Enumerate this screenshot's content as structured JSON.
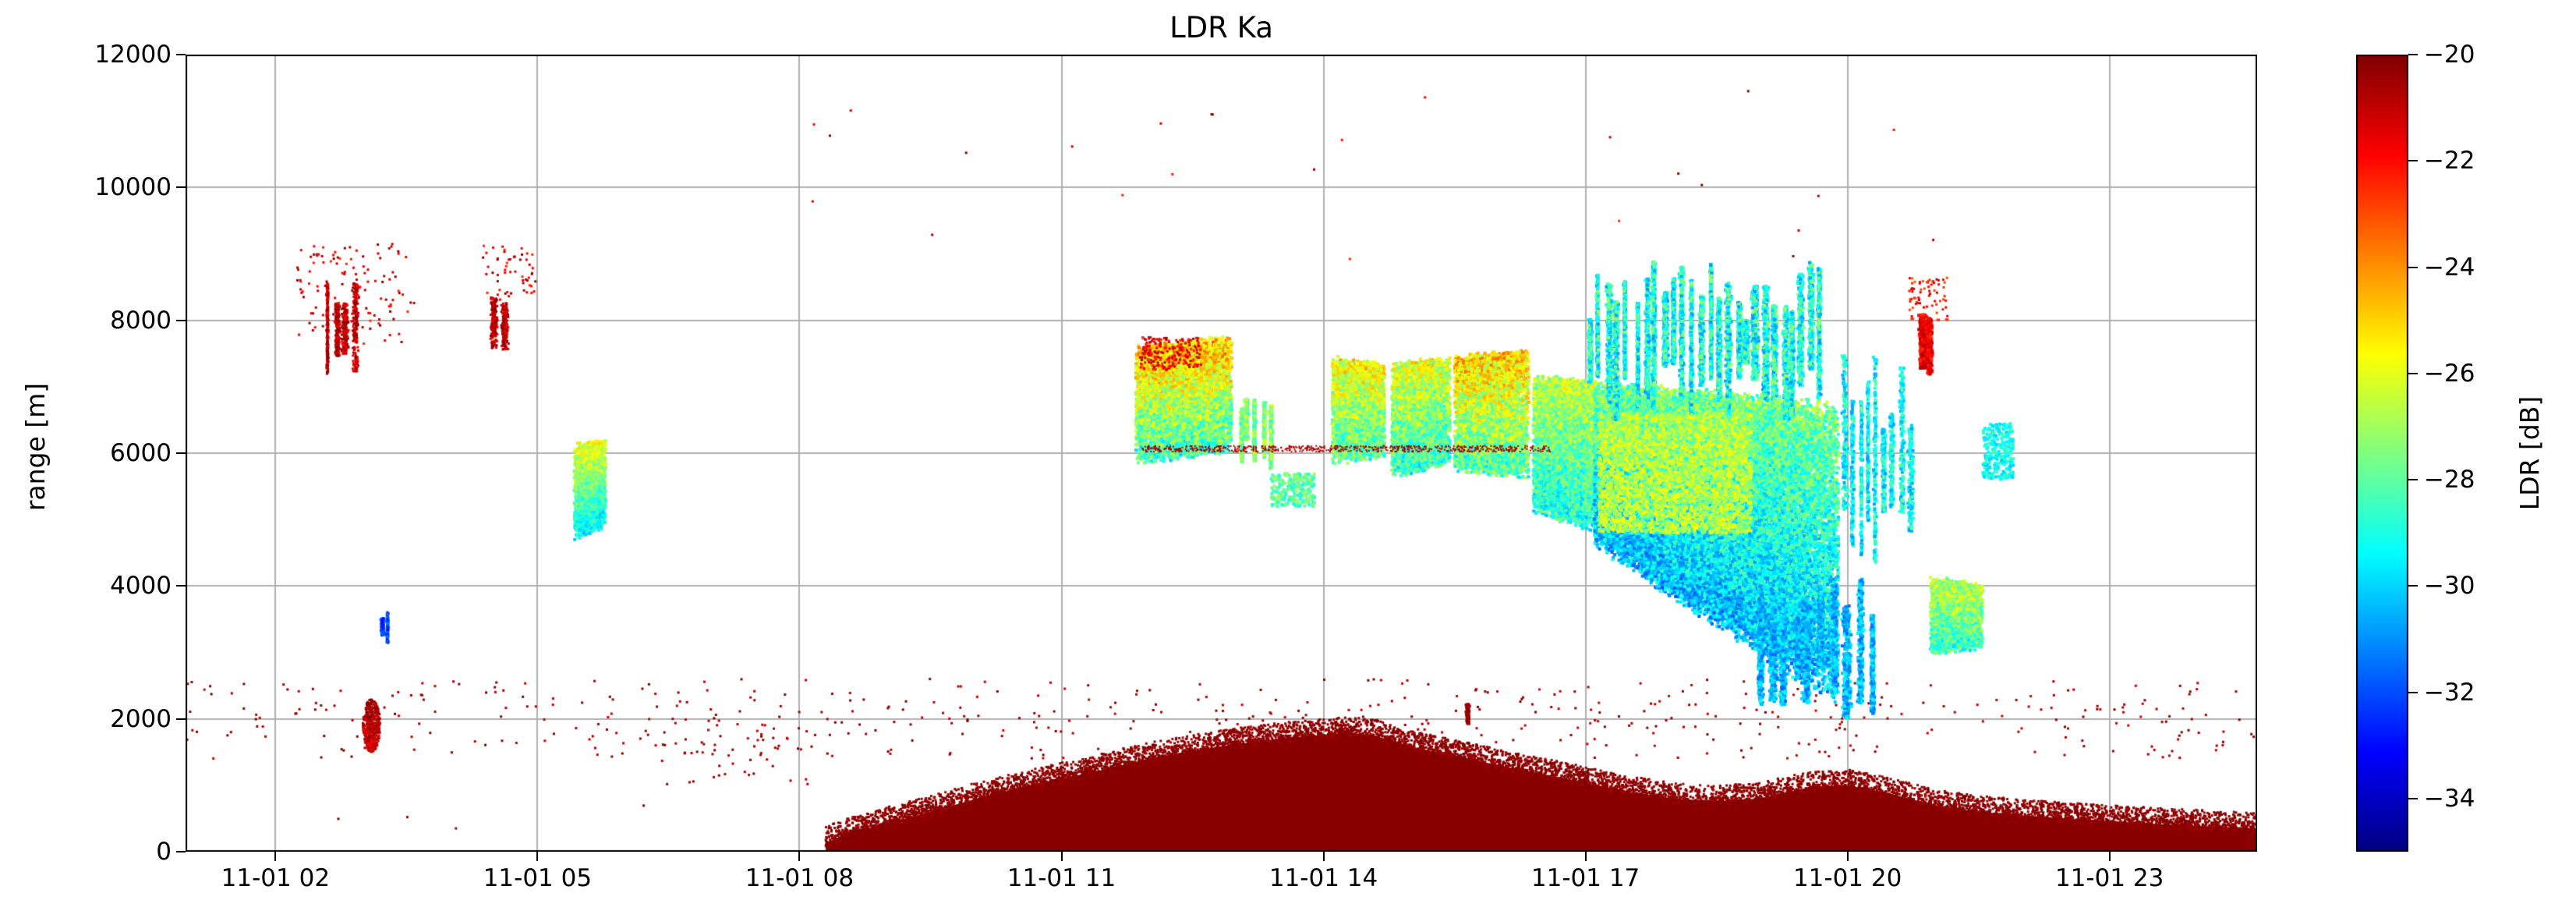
{
  "chart_data": {
    "type": "heatmap",
    "title": "LDR Ka",
    "xlabel": "",
    "ylabel": "range [m]",
    "grid": true,
    "x_range_hours": [
      0.97,
      24.69
    ],
    "ylim": [
      0,
      12000
    ],
    "x_ticks": [
      {
        "hour": 2,
        "label": "11-01 02"
      },
      {
        "hour": 5,
        "label": "11-01 05"
      },
      {
        "hour": 8,
        "label": "11-01 08"
      },
      {
        "hour": 11,
        "label": "11-01 11"
      },
      {
        "hour": 14,
        "label": "11-01 14"
      },
      {
        "hour": 17,
        "label": "11-01 17"
      },
      {
        "hour": 20,
        "label": "11-01 20"
      },
      {
        "hour": 23,
        "label": "11-01 23"
      }
    ],
    "y_ticks": [
      {
        "value": 0,
        "label": "0"
      },
      {
        "value": 2000,
        "label": "2000"
      },
      {
        "value": 4000,
        "label": "4000"
      },
      {
        "value": 6000,
        "label": "6000"
      },
      {
        "value": 8000,
        "label": "8000"
      },
      {
        "value": 10000,
        "label": "10000"
      },
      {
        "value": 12000,
        "label": "12000"
      }
    ],
    "colorbar": {
      "label": "LDR [dB]",
      "colormap": "jet",
      "vmin": -35,
      "vmax": -20,
      "ticks": [
        {
          "value": -20,
          "label": "−20"
        },
        {
          "value": -22,
          "label": "−22"
        },
        {
          "value": -24,
          "label": "−24"
        },
        {
          "value": -26,
          "label": "−26"
        },
        {
          "value": -28,
          "label": "−28"
        },
        {
          "value": -30,
          "label": "−30"
        },
        {
          "value": -32,
          "label": "−32"
        },
        {
          "value": -34,
          "label": "−34"
        }
      ]
    },
    "features": [
      {
        "name": "surface-clutter-dense",
        "style": "layer",
        "t0": 0.97,
        "t1": 24.69,
        "y0": 30,
        "y1": 800,
        "falloff": 1.9,
        "ldr": -20.2,
        "spread": 0.45,
        "n": 26000,
        "size": 3,
        "gaps": [
          [
            5.9,
            8.4,
            0.5
          ]
        ]
      },
      {
        "name": "surface-clutter-mid",
        "style": "layer",
        "t0": 0.97,
        "t1": 24.69,
        "y0": 350,
        "y1": 1500,
        "falloff": 2.6,
        "ldr": -20.3,
        "spread": 0.6,
        "n": 6500,
        "size": 3,
        "gaps": [
          [
            5.9,
            8.4,
            0.5
          ]
        ]
      },
      {
        "name": "surface-clutter-sparse-high",
        "style": "speckle",
        "t0": 0.97,
        "t1": 24.69,
        "y0": 1400,
        "y1": 2600,
        "ldr": -20.5,
        "spread": 0.7,
        "n": 520,
        "size": 3
      },
      {
        "name": "stray-dots-upper-air",
        "style": "speckle",
        "t0": 8.0,
        "t1": 22.6,
        "y0": 8800,
        "y1": 11500,
        "ldr": -21.0,
        "spread": 1.6,
        "n": 26,
        "size": 3
      },
      {
        "name": "precip-dome",
        "style": "dome",
        "ldr": -20.15,
        "t_pts": [
          8.3,
          8.6,
          9.0,
          9.5,
          10.0,
          10.5,
          11.0,
          11.5,
          12.0,
          12.5,
          13.0,
          13.5,
          14.0,
          14.3,
          14.6,
          15.0,
          15.5,
          16.0,
          16.5,
          17.0,
          17.5,
          18.0,
          18.5,
          19.0,
          19.5,
          20.0,
          20.5,
          21.0,
          21.5,
          22.0,
          22.5,
          23.0,
          23.5,
          24.0,
          24.69
        ],
        "top": [
          140,
          280,
          430,
          600,
          790,
          950,
          1100,
          1240,
          1400,
          1520,
          1620,
          1700,
          1760,
          1790,
          1740,
          1580,
          1450,
          1300,
          1170,
          1040,
          900,
          800,
          760,
          800,
          950,
          1000,
          870,
          700,
          600,
          550,
          500,
          460,
          420,
          390,
          350
        ],
        "edge_n": 9000,
        "edge_spread": 300,
        "size": 3
      },
      {
        "name": "clutter-spike-1540",
        "style": "streaks",
        "t0": 15.58,
        "t1": 15.74,
        "y0": 1700,
        "y1": 2350,
        "streaks": 1,
        "ldr": -20.3,
        "spread": 0.4,
        "n": 130,
        "size": 3
      },
      {
        "name": "low-dots-0700",
        "style": "speckle",
        "t0": 6.4,
        "t1": 8.4,
        "y0": 1000,
        "y1": 2000,
        "ldr": -20.6,
        "spread": 0.5,
        "n": 50,
        "size": 3
      },
      {
        "name": "red-fall-streaks-0240",
        "style": "streaks",
        "t0": 2.55,
        "t1": 2.95,
        "y0": 7100,
        "y1": 8600,
        "streaks": 4,
        "ldr": -20.9,
        "spread": 1.1,
        "n": 850,
        "size": 3
      },
      {
        "name": "red-halo-0240",
        "style": "speckle",
        "t0": 2.25,
        "t1": 3.6,
        "y0": 7600,
        "y1": 9150,
        "ldr": -21.2,
        "spread": 1.3,
        "n": 120,
        "size": 3
      },
      {
        "name": "red-fall-streaks-0430",
        "style": "streaks",
        "t0": 4.44,
        "t1": 4.72,
        "y0": 7500,
        "y1": 8350,
        "streaks": 2,
        "ldr": -20.9,
        "spread": 0.9,
        "n": 420,
        "size": 3
      },
      {
        "name": "red-halo-0430",
        "style": "speckle",
        "t0": 4.35,
        "t1": 5.0,
        "y0": 8300,
        "y1": 9150,
        "ldr": -21.3,
        "spread": 1.2,
        "n": 55,
        "size": 3
      },
      {
        "name": "red-blob-low-0300",
        "style": "blob",
        "t0": 3.0,
        "t1": 3.2,
        "y0": 1500,
        "y1": 2300,
        "ldr_top": -20.4,
        "ldr_bottom": -21.3,
        "spread": 0.7,
        "n": 430,
        "size": 3
      },
      {
        "name": "blue-streak-0315",
        "style": "streaks",
        "t0": 3.18,
        "t1": 3.33,
        "y0": 3050,
        "y1": 3650,
        "streaks": 2,
        "ldr": -32.3,
        "spread": 1.1,
        "n": 260,
        "size": 3
      },
      {
        "name": "cloud-blob-0535",
        "style": "cloud",
        "t0": 5.42,
        "t1": 5.78,
        "top0": 6100,
        "top1": 6150,
        "bot0": 4750,
        "bot1": 4950,
        "ldr_top": -25.8,
        "ldr_bottom": -29.6,
        "spread": 1.1,
        "n": 2600,
        "size": 4,
        "streaky": 6
      },
      {
        "name": "cloud-band-1200",
        "style": "cloud",
        "t0": 11.85,
        "t1": 12.95,
        "top0": 7550,
        "top1": 7700,
        "bot0": 5900,
        "bot1": 6100,
        "ldr_top": -24.6,
        "ldr_bottom": -28.5,
        "spread": 1.8,
        "n": 7000,
        "size": 4,
        "streaky": 12
      },
      {
        "name": "red-flecks-1200-top",
        "style": "speckle",
        "t0": 11.9,
        "t1": 12.6,
        "y0": 7250,
        "y1": 7750,
        "ldr": -21.6,
        "spread": 1.0,
        "n": 200,
        "size": 3
      },
      {
        "name": "cloud-wisps-1310",
        "style": "streaks",
        "t0": 13.0,
        "t1": 13.45,
        "y0": 5750,
        "y1": 7000,
        "streaks": 5,
        "ldr": -27.4,
        "spread": 1.5,
        "n": 900,
        "size": 4
      },
      {
        "name": "cloud-bits-1335",
        "style": "speckle",
        "t0": 13.4,
        "t1": 13.9,
        "y0": 5200,
        "y1": 5700,
        "ldr": -28.0,
        "spread": 1.2,
        "n": 240,
        "size": 4
      },
      {
        "name": "cloud-blob-1425",
        "style": "cloud",
        "t0": 14.1,
        "t1": 14.7,
        "top0": 7400,
        "top1": 7300,
        "bot0": 5900,
        "bot1": 6000,
        "ldr_top": -25.6,
        "ldr_bottom": -28.2,
        "spread": 1.6,
        "n": 3800,
        "size": 4,
        "streaky": 7
      },
      {
        "name": "cloud-blob-1500",
        "style": "cloud",
        "t0": 14.78,
        "t1": 15.45,
        "top0": 7300,
        "top1": 7400,
        "bot0": 5700,
        "bot1": 5900,
        "ldr_top": -26.0,
        "ldr_bottom": -28.6,
        "spread": 1.6,
        "n": 4200,
        "size": 4,
        "streaky": 8
      },
      {
        "name": "cloud-blob-1600",
        "style": "cloud",
        "t0": 15.5,
        "t1": 16.35,
        "top0": 7400,
        "top1": 7500,
        "bot0": 5800,
        "bot1": 5700,
        "ldr_top": -25.0,
        "ldr_bottom": -28.2,
        "spread": 1.8,
        "n": 6000,
        "size": 4,
        "streaky": 9
      },
      {
        "name": "cloud-blob-1645",
        "style": "cloud",
        "t0": 16.4,
        "t1": 17.15,
        "top0": 7100,
        "top1": 7000,
        "bot0": 5200,
        "bot1": 4900,
        "ldr_top": -26.6,
        "ldr_bottom": -29.0,
        "spread": 1.5,
        "n": 6500,
        "size": 4,
        "streaky": 8
      },
      {
        "name": "cloud-main-mass",
        "style": "cloud",
        "t0": 17.1,
        "t1": 19.9,
        "top0": 7000,
        "top1": 6600,
        "bot0": 4700,
        "bot1": 2400,
        "ldr_top": -27.6,
        "ldr_bottom": -30.4,
        "spread": 1.6,
        "n": 30000,
        "size": 4,
        "streaky": 30
      },
      {
        "name": "green-mottle-main-mass",
        "style": "speckle",
        "t0": 17.15,
        "t1": 18.9,
        "y0": 4800,
        "y1": 6600,
        "ldr": -26.6,
        "spread": 1.2,
        "n": 3200,
        "size": 4
      },
      {
        "name": "cirrus-streaks-1800",
        "style": "streaks",
        "t0": 17.0,
        "t1": 19.75,
        "y0": 6500,
        "y1": 8900,
        "streaks": 26,
        "ldr": -29.0,
        "spread": 2.0,
        "n": 9000,
        "size": 4
      },
      {
        "name": "fall-streaks-1930",
        "style": "streaks",
        "t0": 18.9,
        "t1": 20.35,
        "y0": 1950,
        "y1": 4200,
        "streaks": 10,
        "ldr": -30.4,
        "spread": 1.3,
        "n": 3200,
        "size": 4
      },
      {
        "name": "sparse-streaks-2015",
        "style": "streaks",
        "t0": 19.9,
        "t1": 20.75,
        "y0": 4300,
        "y1": 7600,
        "streaks": 9,
        "ldr": -29.4,
        "spread": 1.5,
        "n": 1500,
        "size": 4
      },
      {
        "name": "red-streak-2055",
        "style": "streaks",
        "t0": 20.78,
        "t1": 21.02,
        "y0": 7100,
        "y1": 8100,
        "streaks": 2,
        "ldr": -21.6,
        "spread": 1.0,
        "n": 650,
        "size": 4
      },
      {
        "name": "red-halo-2055",
        "style": "speckle",
        "t0": 20.7,
        "t1": 21.15,
        "y0": 8000,
        "y1": 8650,
        "ldr": -22.0,
        "spread": 1.2,
        "n": 70,
        "size": 3
      },
      {
        "name": "cloud-blob-2115",
        "style": "cloud",
        "t0": 20.95,
        "t1": 21.55,
        "top0": 4100,
        "top1": 4000,
        "bot0": 3000,
        "bot1": 3100,
        "ldr_top": -26.6,
        "ldr_bottom": -28.6,
        "spread": 1.5,
        "n": 2400,
        "size": 4,
        "streaky": 5
      },
      {
        "name": "cyan-bits-2145",
        "style": "speckle",
        "t0": 21.55,
        "t1": 21.9,
        "y0": 5600,
        "y1": 6450,
        "ldr": -29.2,
        "spread": 1.0,
        "n": 280,
        "size": 4
      },
      {
        "name": "thin-layer-6000",
        "style": "speckle",
        "t0": 11.9,
        "t1": 16.6,
        "y0": 6020,
        "y1": 6110,
        "ldr": -20.6,
        "spread": 0.4,
        "n": 650,
        "size": 2
      }
    ]
  },
  "style": {
    "grid_color": "#b0b0b0",
    "axis_color": "#000000",
    "background": "#ffffff"
  }
}
